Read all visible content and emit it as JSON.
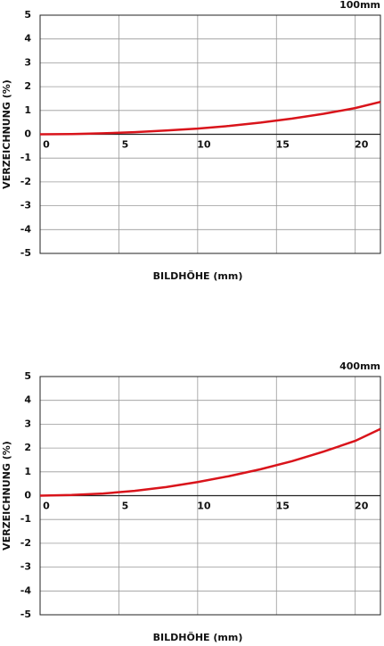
{
  "chart_data": [
    {
      "type": "line",
      "title": "100mm",
      "x_label": "BILDHÖHE (mm)",
      "y_label": "VERZEICHNUNG (%)",
      "x": [
        0,
        2,
        4,
        6,
        8,
        10,
        12,
        14,
        16,
        18,
        20,
        21.6
      ],
      "series": [
        {
          "color": "#d9141b",
          "values": [
            0,
            0.01,
            0.04,
            0.09,
            0.16,
            0.24,
            0.35,
            0.49,
            0.66,
            0.86,
            1.1,
            1.36
          ]
        }
      ],
      "xlim": [
        0,
        21.6
      ],
      "ylim": [
        -5,
        5
      ],
      "xticks": [
        0,
        5,
        10,
        15,
        20
      ],
      "yticks": [
        5,
        4,
        3,
        2,
        1,
        0,
        -1,
        -2,
        -3,
        -4,
        -5
      ],
      "grid": true
    },
    {
      "type": "line",
      "title": "400mm",
      "x_label": "BILDHÖHE (mm)",
      "y_label": "VERZEICHNUNG (%)",
      "x": [
        0,
        2,
        4,
        6,
        8,
        10,
        12,
        14,
        16,
        18,
        20,
        21.6
      ],
      "series": [
        {
          "color": "#d9141b",
          "values": [
            0,
            0.03,
            0.09,
            0.2,
            0.36,
            0.57,
            0.82,
            1.11,
            1.45,
            1.85,
            2.3,
            2.8
          ]
        }
      ],
      "xlim": [
        0,
        21.6
      ],
      "ylim": [
        -5,
        5
      ],
      "xticks": [
        0,
        5,
        10,
        15,
        20
      ],
      "yticks": [
        5,
        4,
        3,
        2,
        1,
        0,
        -1,
        -2,
        -3,
        -4,
        -5
      ],
      "grid": true
    }
  ]
}
